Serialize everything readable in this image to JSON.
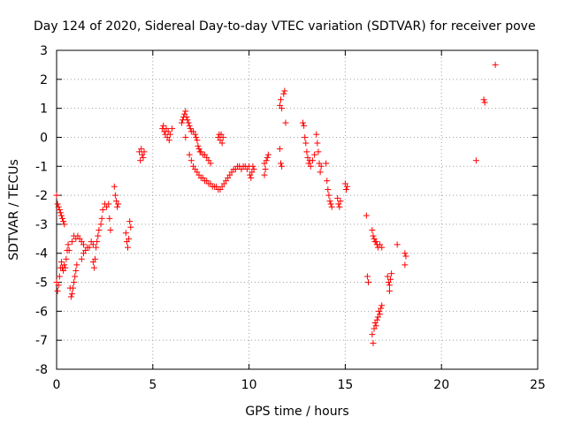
{
  "chart_data": {
    "type": "scatter",
    "title": "Day 124 of 2020, Sidereal Day-to-day VTEC variation (SDTVAR) for receiver pove",
    "xlabel": "GPS time / hours",
    "ylabel": "SDTVAR / TECUs",
    "xlim": [
      0,
      25
    ],
    "ylim": [
      -8,
      3
    ],
    "xticks": [
      "0",
      "5",
      "10",
      "15",
      "20",
      "25"
    ],
    "yticks": [
      "3",
      "2",
      "1",
      "0",
      "-1",
      "-2",
      "-3",
      "-4",
      "-5",
      "-6",
      "-7",
      "-8"
    ],
    "grid": true,
    "marker": "+",
    "color": "#ff0000",
    "series": [
      {
        "name": "SDTVAR",
        "points": [
          [
            0.0,
            -2.0
          ],
          [
            0.05,
            -2.3
          ],
          [
            0.1,
            -2.4
          ],
          [
            0.15,
            -2.5
          ],
          [
            0.2,
            -2.6
          ],
          [
            0.25,
            -2.7
          ],
          [
            0.3,
            -2.8
          ],
          [
            0.35,
            -2.9
          ],
          [
            0.4,
            -3.0
          ],
          [
            0.0,
            -5.0
          ],
          [
            0.05,
            -5.3
          ],
          [
            0.1,
            -5.1
          ],
          [
            0.15,
            -4.8
          ],
          [
            0.2,
            -4.5
          ],
          [
            0.25,
            -4.3
          ],
          [
            0.3,
            -4.5
          ],
          [
            0.35,
            -4.6
          ],
          [
            0.4,
            -4.4
          ],
          [
            0.45,
            -4.5
          ],
          [
            0.5,
            -4.2
          ],
          [
            0.55,
            -3.9
          ],
          [
            0.6,
            -3.7
          ],
          [
            0.65,
            -3.9
          ],
          [
            0.7,
            -5.2
          ],
          [
            0.75,
            -5.5
          ],
          [
            0.8,
            -5.4
          ],
          [
            0.85,
            -5.2
          ],
          [
            0.9,
            -5.0
          ],
          [
            0.95,
            -4.8
          ],
          [
            1.0,
            -4.6
          ],
          [
            1.05,
            -4.4
          ],
          [
            0.8,
            -3.6
          ],
          [
            0.9,
            -3.4
          ],
          [
            1.0,
            -3.5
          ],
          [
            1.1,
            -3.4
          ],
          [
            1.2,
            -3.5
          ],
          [
            1.3,
            -3.6
          ],
          [
            1.4,
            -3.7
          ],
          [
            1.3,
            -4.2
          ],
          [
            1.4,
            -4.0
          ],
          [
            1.5,
            -3.9
          ],
          [
            1.6,
            -3.8
          ],
          [
            1.7,
            -3.8
          ],
          [
            1.8,
            -3.6
          ],
          [
            1.9,
            -3.7
          ],
          [
            1.9,
            -4.3
          ],
          [
            1.95,
            -4.5
          ],
          [
            2.0,
            -4.2
          ],
          [
            2.05,
            -3.8
          ],
          [
            2.1,
            -3.6
          ],
          [
            2.15,
            -3.4
          ],
          [
            2.2,
            -3.2
          ],
          [
            2.3,
            -3.0
          ],
          [
            2.35,
            -2.8
          ],
          [
            2.4,
            -2.5
          ],
          [
            2.5,
            -2.3
          ],
          [
            2.6,
            -2.4
          ],
          [
            2.7,
            -2.3
          ],
          [
            2.75,
            -2.8
          ],
          [
            2.8,
            -3.2
          ],
          [
            3.0,
            -1.7
          ],
          [
            3.05,
            -2.0
          ],
          [
            3.1,
            -2.2
          ],
          [
            3.15,
            -2.4
          ],
          [
            3.2,
            -2.3
          ],
          [
            3.6,
            -3.3
          ],
          [
            3.65,
            -3.6
          ],
          [
            3.7,
            -3.8
          ],
          [
            3.75,
            -3.5
          ],
          [
            3.8,
            -2.9
          ],
          [
            3.85,
            -3.1
          ],
          [
            4.3,
            -0.5
          ],
          [
            4.35,
            -0.8
          ],
          [
            4.4,
            -0.4
          ],
          [
            4.45,
            -0.6
          ],
          [
            4.5,
            -0.7
          ],
          [
            4.55,
            -0.5
          ],
          [
            5.5,
            0.3
          ],
          [
            5.55,
            0.4
          ],
          [
            5.6,
            0.2
          ],
          [
            5.65,
            0.1
          ],
          [
            5.7,
            0.3
          ],
          [
            5.75,
            0.0
          ],
          [
            5.8,
            0.2
          ],
          [
            5.85,
            -0.1
          ],
          [
            5.9,
            0.1
          ],
          [
            6.0,
            0.3
          ],
          [
            6.5,
            0.5
          ],
          [
            6.55,
            0.6
          ],
          [
            6.6,
            0.7
          ],
          [
            6.65,
            0.8
          ],
          [
            6.7,
            0.9
          ],
          [
            6.75,
            0.7
          ],
          [
            6.8,
            0.6
          ],
          [
            6.85,
            0.5
          ],
          [
            6.9,
            0.4
          ],
          [
            6.95,
            0.3
          ],
          [
            7.0,
            0.2
          ],
          [
            7.1,
            0.2
          ],
          [
            7.2,
            0.1
          ],
          [
            7.25,
            0.0
          ],
          [
            7.3,
            -0.1
          ],
          [
            7.35,
            -0.3
          ],
          [
            7.4,
            -0.4
          ],
          [
            7.45,
            -0.5
          ],
          [
            7.5,
            -0.5
          ],
          [
            7.6,
            -0.6
          ],
          [
            7.7,
            -0.6
          ],
          [
            7.8,
            -0.7
          ],
          [
            7.9,
            -0.8
          ],
          [
            8.0,
            -0.9
          ],
          [
            6.7,
            0.0
          ],
          [
            6.9,
            -0.6
          ],
          [
            7.0,
            -0.8
          ],
          [
            7.1,
            -1.0
          ],
          [
            7.2,
            -1.1
          ],
          [
            7.3,
            -1.2
          ],
          [
            7.4,
            -1.3
          ],
          [
            7.5,
            -1.4
          ],
          [
            7.6,
            -1.4
          ],
          [
            7.7,
            -1.5
          ],
          [
            7.8,
            -1.5
          ],
          [
            7.9,
            -1.6
          ],
          [
            8.0,
            -1.6
          ],
          [
            8.1,
            -1.7
          ],
          [
            8.2,
            -1.7
          ],
          [
            8.3,
            -1.7
          ],
          [
            8.4,
            -1.8
          ],
          [
            8.5,
            -1.8
          ],
          [
            8.6,
            -1.7
          ],
          [
            8.7,
            -1.6
          ],
          [
            8.8,
            -1.5
          ],
          [
            8.9,
            -1.4
          ],
          [
            9.0,
            -1.3
          ],
          [
            9.1,
            -1.2
          ],
          [
            9.2,
            -1.1
          ],
          [
            9.3,
            -1.1
          ],
          [
            9.4,
            -1.0
          ],
          [
            9.5,
            -1.0
          ],
          [
            9.6,
            -1.1
          ],
          [
            9.7,
            -1.0
          ],
          [
            9.8,
            -1.0
          ],
          [
            9.9,
            -1.1
          ],
          [
            10.0,
            -1.0
          ],
          [
            10.05,
            -1.3
          ],
          [
            10.1,
            -1.4
          ],
          [
            10.15,
            -1.2
          ],
          [
            10.2,
            -1.0
          ],
          [
            10.25,
            -1.1
          ],
          [
            8.4,
            0.0
          ],
          [
            8.45,
            0.1
          ],
          [
            8.5,
            -0.1
          ],
          [
            8.55,
            0.1
          ],
          [
            8.6,
            -0.2
          ],
          [
            8.65,
            0.0
          ],
          [
            10.8,
            -0.9
          ],
          [
            10.85,
            -1.1
          ],
          [
            10.9,
            -0.8
          ],
          [
            10.95,
            -0.7
          ],
          [
            11.0,
            -0.6
          ],
          [
            10.8,
            -1.3
          ],
          [
            11.6,
            1.1
          ],
          [
            11.65,
            1.3
          ],
          [
            11.7,
            1.0
          ],
          [
            11.8,
            1.5
          ],
          [
            11.85,
            1.6
          ],
          [
            11.9,
            0.5
          ],
          [
            11.6,
            -0.4
          ],
          [
            11.65,
            -0.9
          ],
          [
            11.7,
            -1.0
          ],
          [
            12.8,
            0.5
          ],
          [
            12.85,
            0.4
          ],
          [
            12.9,
            0.0
          ],
          [
            12.95,
            -0.2
          ],
          [
            13.0,
            -0.5
          ],
          [
            13.05,
            -0.7
          ],
          [
            13.1,
            -0.9
          ],
          [
            13.15,
            -0.8
          ],
          [
            13.2,
            -1.0
          ],
          [
            13.3,
            -0.8
          ],
          [
            13.4,
            -0.6
          ],
          [
            13.5,
            0.1
          ],
          [
            13.55,
            -0.2
          ],
          [
            13.6,
            -0.5
          ],
          [
            13.65,
            -0.9
          ],
          [
            13.7,
            -1.2
          ],
          [
            13.75,
            -1.0
          ],
          [
            14.0,
            -0.9
          ],
          [
            14.05,
            -1.5
          ],
          [
            14.1,
            -1.8
          ],
          [
            14.15,
            -2.0
          ],
          [
            14.2,
            -2.2
          ],
          [
            14.25,
            -2.3
          ],
          [
            14.3,
            -2.4
          ],
          [
            14.6,
            -2.1
          ],
          [
            14.65,
            -2.3
          ],
          [
            14.7,
            -2.4
          ],
          [
            14.75,
            -2.2
          ],
          [
            15.0,
            -1.6
          ],
          [
            15.05,
            -1.8
          ],
          [
            15.1,
            -1.7
          ],
          [
            16.1,
            -2.7
          ],
          [
            16.15,
            -4.8
          ],
          [
            16.2,
            -5.0
          ],
          [
            16.4,
            -3.2
          ],
          [
            16.45,
            -3.4
          ],
          [
            16.5,
            -3.5
          ],
          [
            16.55,
            -3.6
          ],
          [
            16.6,
            -3.6
          ],
          [
            16.65,
            -3.7
          ],
          [
            16.7,
            -3.8
          ],
          [
            16.8,
            -3.7
          ],
          [
            16.9,
            -3.8
          ],
          [
            16.4,
            -6.8
          ],
          [
            16.45,
            -7.1
          ],
          [
            16.5,
            -6.6
          ],
          [
            16.55,
            -6.4
          ],
          [
            16.6,
            -6.5
          ],
          [
            16.65,
            -6.3
          ],
          [
            16.7,
            -6.2
          ],
          [
            16.75,
            -6.0
          ],
          [
            16.8,
            -6.1
          ],
          [
            16.85,
            -5.9
          ],
          [
            16.9,
            -5.8
          ],
          [
            17.2,
            -4.8
          ],
          [
            17.25,
            -5.0
          ],
          [
            17.3,
            -5.1
          ],
          [
            17.35,
            -4.9
          ],
          [
            17.4,
            -4.7
          ],
          [
            17.3,
            -5.3
          ],
          [
            17.7,
            -3.7
          ],
          [
            18.1,
            -4.0
          ],
          [
            18.15,
            -4.1
          ],
          [
            18.1,
            -4.4
          ],
          [
            21.8,
            -0.8
          ],
          [
            22.2,
            1.3
          ],
          [
            22.25,
            1.2
          ],
          [
            22.8,
            2.5
          ]
        ]
      }
    ]
  }
}
